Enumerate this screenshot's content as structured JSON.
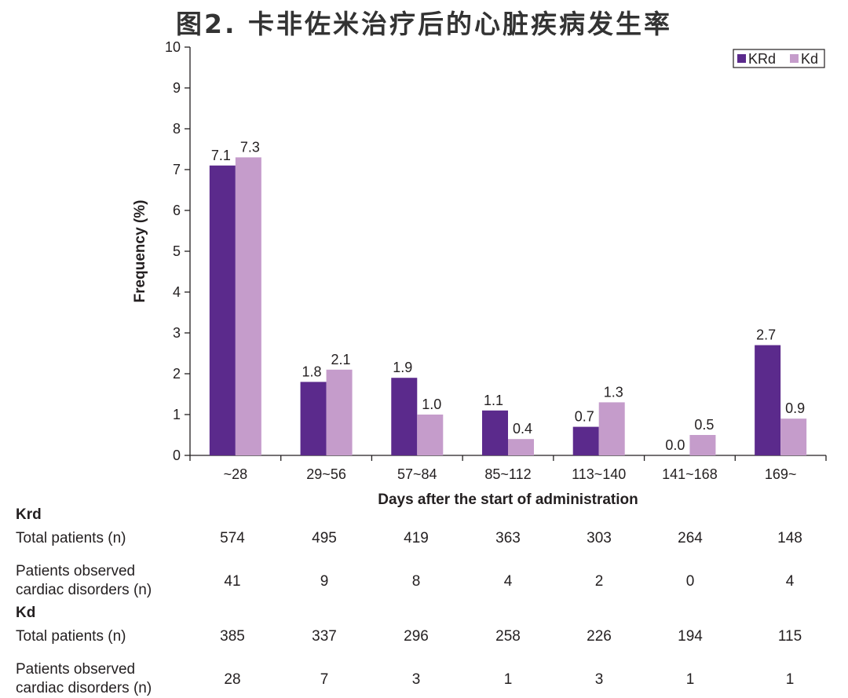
{
  "title": "图2. 卡非佐米治疗后的心脏疾病发生率",
  "colors": {
    "KRd": "#5b2a8c",
    "Kd": "#c59ccb"
  },
  "chart_data": {
    "type": "bar",
    "categories": [
      "~28",
      "29~56",
      "57~84",
      "85~112",
      "113~140",
      "141~168",
      "169~"
    ],
    "series": [
      {
        "name": "KRd",
        "values": [
          7.1,
          1.8,
          1.9,
          1.1,
          0.7,
          0.0,
          2.7
        ]
      },
      {
        "name": "Kd",
        "values": [
          7.3,
          2.1,
          1.0,
          0.4,
          1.3,
          0.5,
          0.9
        ]
      }
    ],
    "value_labels": {
      "KRd": [
        "7.1",
        "1.8",
        "1.9",
        "1.1",
        "0.7",
        "0.0",
        "2.7"
      ],
      "Kd": [
        "7.3",
        "2.1",
        "1.0",
        "0.4",
        "1.3",
        "0.5",
        "0.9"
      ]
    },
    "xlabel": "Days after the start of administration",
    "ylabel": "Frequency (%)",
    "ylim": [
      0,
      10
    ],
    "yticks": [
      "0",
      "1",
      "2",
      "3",
      "4",
      "5",
      "6",
      "7",
      "8",
      "9",
      "10"
    ],
    "grid": false,
    "legend_position": "top-right"
  },
  "table": {
    "sections": [
      {
        "name": "Krd",
        "rows": [
          {
            "label": [
              "Total patients (n)"
            ],
            "values": [
              "574",
              "495",
              "419",
              "363",
              "303",
              "264",
              "148"
            ]
          },
          {
            "label": [
              "Patients observed",
              "cardiac disorders (n)"
            ],
            "values": [
              "41",
              "9",
              "8",
              "4",
              "2",
              "0",
              "4"
            ]
          }
        ]
      },
      {
        "name": "Kd",
        "rows": [
          {
            "label": [
              "Total patients (n)"
            ],
            "values": [
              "385",
              "337",
              "296",
              "258",
              "226",
              "194",
              "115"
            ]
          },
          {
            "label": [
              "Patients observed",
              "cardiac disorders (n)"
            ],
            "values": [
              "28",
              "7",
              "3",
              "1",
              "3",
              "1",
              "1"
            ]
          }
        ]
      }
    ]
  }
}
